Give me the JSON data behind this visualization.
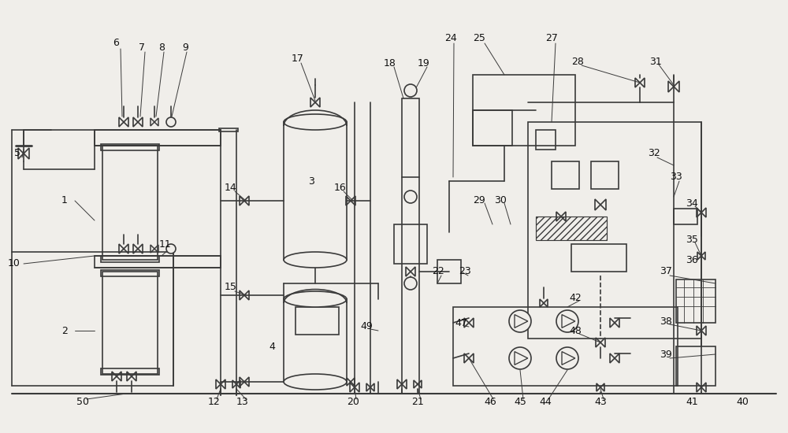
{
  "bg_color": "#f0eeea",
  "line_color": "#3a3a3a",
  "text_color": "#111111",
  "fig_width": 10.0,
  "fig_height": 5.5
}
